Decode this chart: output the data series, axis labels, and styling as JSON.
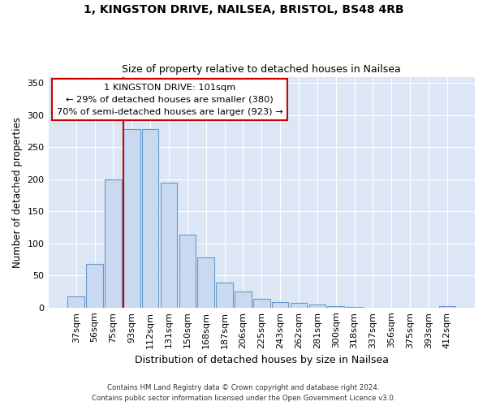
{
  "title1": "1, KINGSTON DRIVE, NAILSEA, BRISTOL, BS48 4RB",
  "title2": "Size of property relative to detached houses in Nailsea",
  "xlabel": "Distribution of detached houses by size in Nailsea",
  "ylabel": "Number of detached properties",
  "bar_labels": [
    "37sqm",
    "56sqm",
    "75sqm",
    "93sqm",
    "112sqm",
    "131sqm",
    "150sqm",
    "168sqm",
    "187sqm",
    "206sqm",
    "225sqm",
    "243sqm",
    "262sqm",
    "281sqm",
    "300sqm",
    "318sqm",
    "337sqm",
    "356sqm",
    "375sqm",
    "393sqm",
    "412sqm"
  ],
  "bar_values": [
    17,
    68,
    200,
    278,
    278,
    195,
    114,
    78,
    39,
    25,
    14,
    9,
    7,
    5,
    2,
    1,
    0,
    0,
    0,
    0,
    2
  ],
  "bar_color": "#c9d9ef",
  "bar_edge_color": "#6699cc",
  "ylim": [
    0,
    360
  ],
  "yticks": [
    0,
    50,
    100,
    150,
    200,
    250,
    300,
    350
  ],
  "property_line_color": "#cc0000",
  "annotation_title": "1 KINGSTON DRIVE: 101sqm",
  "annotation_line1": "← 29% of detached houses are smaller (380)",
  "annotation_line2": "70% of semi-detached houses are larger (923) →",
  "annotation_box_edge_color": "#cc0000",
  "footer1": "Contains HM Land Registry data © Crown copyright and database right 2024.",
  "footer2": "Contains public sector information licensed under the Open Government Licence v3.0.",
  "figure_bg_color": "#ffffff",
  "plot_bg_color": "#dce6f5"
}
